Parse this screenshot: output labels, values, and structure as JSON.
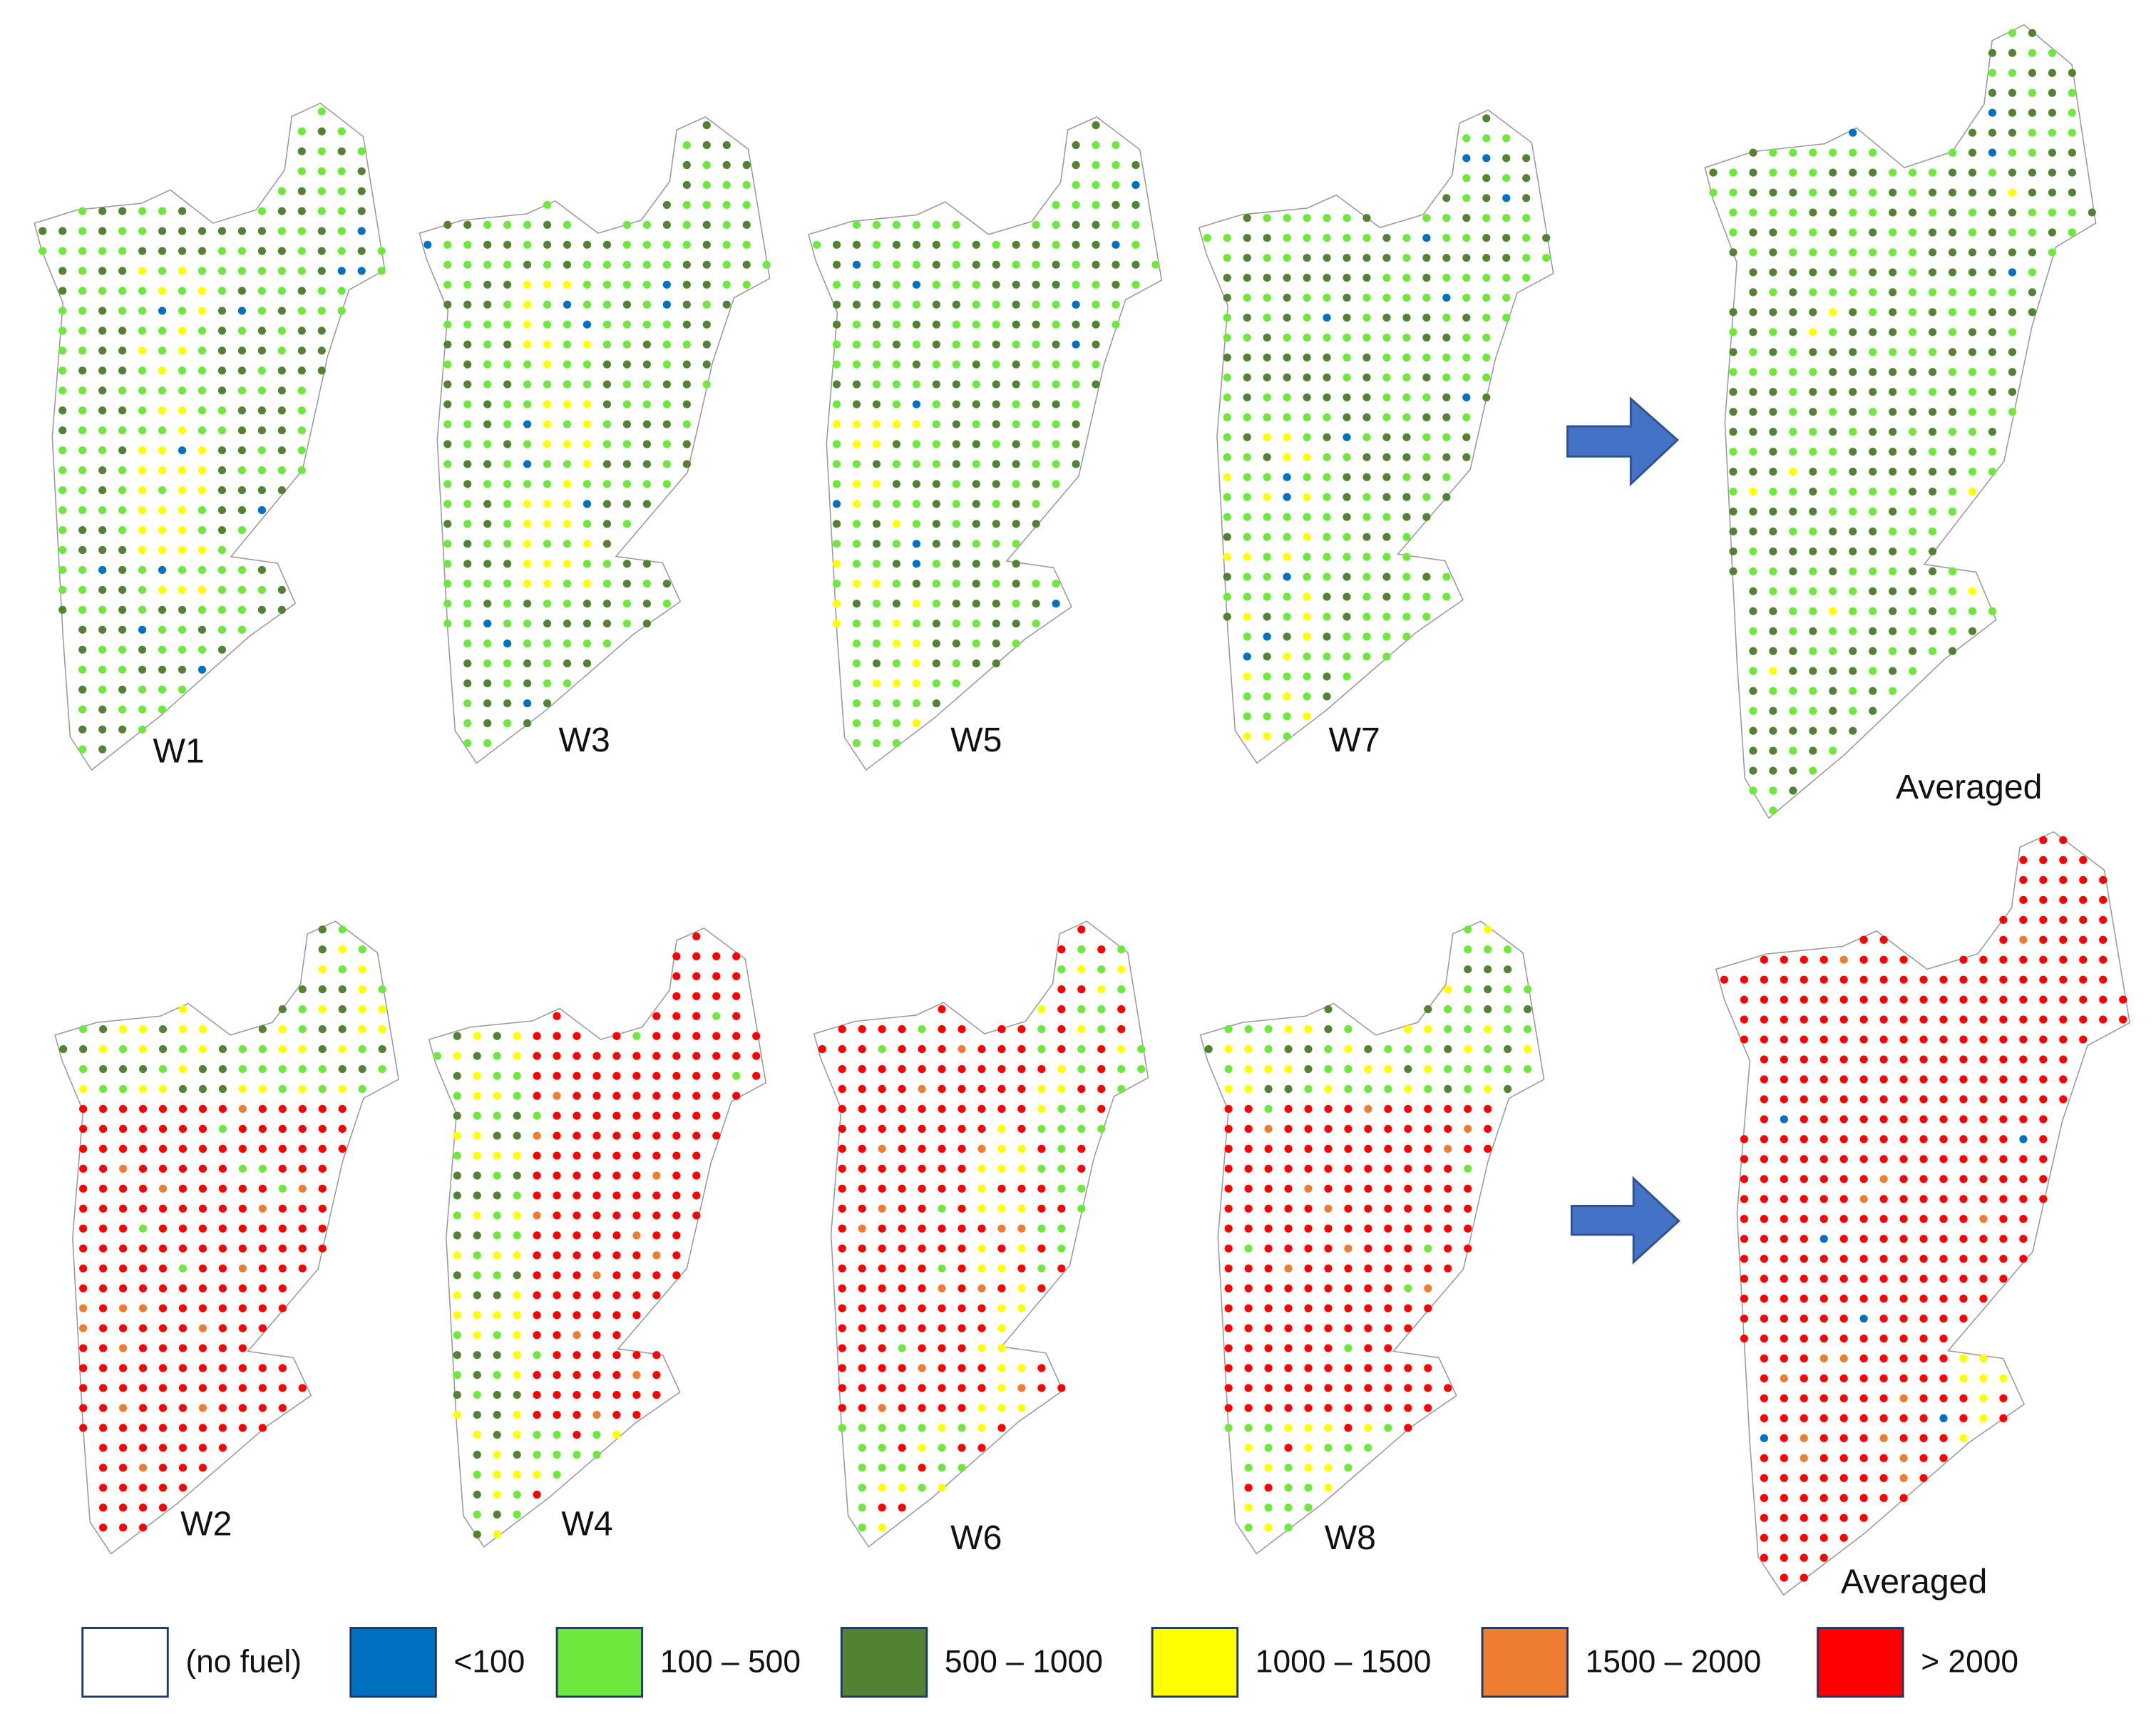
{
  "panels": [
    {
      "label": "W1"
    },
    {
      "label": "W3"
    },
    {
      "label": "W5"
    },
    {
      "label": "W7"
    },
    {
      "label": "Averaged"
    },
    {
      "label": "W2"
    },
    {
      "label": "W4"
    },
    {
      "label": "W6"
    },
    {
      "label": "W8"
    },
    {
      "label": "Averaged"
    }
  ],
  "legend": [
    {
      "label": "(no fuel)",
      "color": "#ffffff"
    },
    {
      "label": "<100",
      "color": "#0070c0"
    },
    {
      "label": "100 – 500",
      "color": "#6ee83c"
    },
    {
      "label": "500 – 1000",
      "color": "#548235"
    },
    {
      "label": "1000 – 1500",
      "color": "#ffff00"
    },
    {
      "label": "1500 – 2000",
      "color": "#ed7d31"
    },
    {
      "label": "> 2000",
      "color": "#ff0000"
    }
  ]
}
